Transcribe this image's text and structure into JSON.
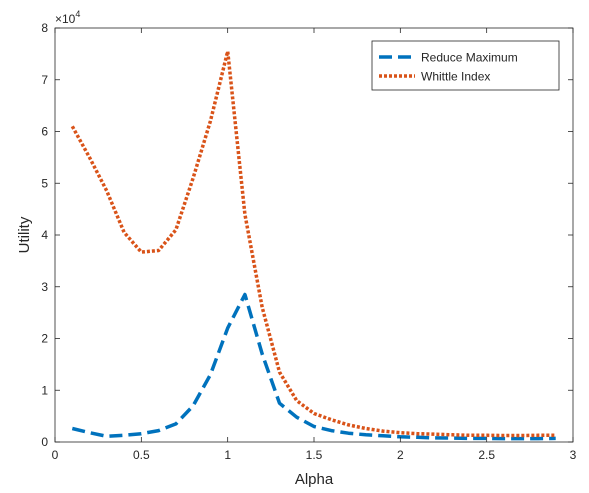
{
  "chart_data": {
    "type": "line",
    "title": "",
    "xlabel": "Alpha",
    "ylabel": "Utility",
    "xlim": [
      0,
      3
    ],
    "ylim": [
      0,
      80000
    ],
    "xticks": [
      0,
      0.5,
      1,
      1.5,
      2,
      2.5,
      3
    ],
    "xtick_labels": [
      "0",
      "0.5",
      "1",
      "1.5",
      "2",
      "2.5",
      "3"
    ],
    "yticks": [
      0,
      10000,
      20000,
      30000,
      40000,
      50000,
      60000,
      70000,
      80000
    ],
    "ytick_labels": [
      "0",
      "1",
      "2",
      "3",
      "4",
      "5",
      "6",
      "7",
      "8"
    ],
    "y_exponent_label": "×10",
    "y_exponent_power": "4",
    "grid": false,
    "legend_position": "top-right",
    "series": [
      {
        "name": "Reduce Maximum",
        "color": "#0072BD",
        "style": "dashed",
        "x": [
          0.1,
          0.2,
          0.3,
          0.4,
          0.5,
          0.6,
          0.7,
          0.8,
          0.9,
          1.0,
          1.1,
          1.2,
          1.3,
          1.4,
          1.5,
          1.6,
          1.7,
          1.8,
          1.9,
          2.0,
          2.1,
          2.2,
          2.3,
          2.4,
          2.5,
          2.6,
          2.7,
          2.8,
          2.9
        ],
        "y": [
          2600,
          1800,
          1100,
          1300,
          1600,
          2200,
          3500,
          7000,
          13000,
          22000,
          28500,
          17000,
          7500,
          4800,
          3000,
          2200,
          1700,
          1400,
          1200,
          1000,
          900,
          800,
          750,
          700,
          700,
          650,
          650,
          650,
          700
        ]
      },
      {
        "name": "Whittle Index",
        "color": "#D95319",
        "style": "dotted",
        "x": [
          0.1,
          0.2,
          0.3,
          0.4,
          0.5,
          0.6,
          0.7,
          0.8,
          0.9,
          1.0,
          1.1,
          1.2,
          1.3,
          1.4,
          1.5,
          1.6,
          1.7,
          1.8,
          1.9,
          2.0,
          2.1,
          2.2,
          2.3,
          2.4,
          2.5,
          2.6,
          2.7,
          2.8,
          2.9
        ],
        "y": [
          61000,
          55000,
          48500,
          40500,
          36700,
          37000,
          41000,
          51000,
          62000,
          75500,
          44000,
          26000,
          13500,
          8000,
          5500,
          4300,
          3300,
          2600,
          2100,
          1800,
          1600,
          1500,
          1400,
          1300,
          1300,
          1250,
          1250,
          1300,
          1300
        ]
      }
    ]
  }
}
